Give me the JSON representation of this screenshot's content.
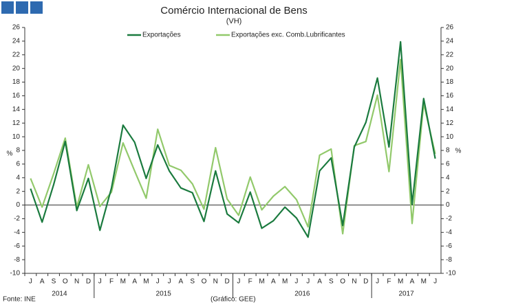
{
  "chart_data": {
    "type": "line",
    "title": "Comércio Internacional de Bens",
    "subtitle": "(VH)",
    "y_label": "%",
    "y2_label": "%",
    "source": "Fonte: INE",
    "credit": "(Gráfico: GEE)",
    "categories": [
      "J",
      "A",
      "S",
      "O",
      "N",
      "D",
      "J",
      "F",
      "M",
      "A",
      "M",
      "J",
      "J",
      "A",
      "S",
      "O",
      "N",
      "D",
      "J",
      "F",
      "M",
      "A",
      "M",
      "J",
      "J",
      "A",
      "S",
      "O",
      "N",
      "D",
      "J",
      "F",
      "M",
      "A",
      "M",
      "J"
    ],
    "year_groups": [
      {
        "label": "2014",
        "count": 6
      },
      {
        "label": "2015",
        "count": 12
      },
      {
        "label": "2016",
        "count": 12
      },
      {
        "label": "2017",
        "count": 6
      }
    ],
    "series": [
      {
        "name": "Exportações",
        "color": "#1a7a3e",
        "values": [
          2.4,
          -2.5,
          3,
          9.3,
          -0.8,
          3.9,
          -3.7,
          2.5,
          11.7,
          9.2,
          3.9,
          8.8,
          5,
          2.5,
          1.8,
          -2.4,
          5,
          -1.3,
          -2.6,
          1.9,
          -3.4,
          -2.3,
          -0.3,
          -1.9,
          -4.7,
          5,
          6.9,
          -3,
          8.5,
          12.1,
          18.6,
          8.5,
          23.9,
          0.1,
          15.6,
          6.8
        ]
      },
      {
        "name": "Exportações exc. Comb.Lubrificantes",
        "color": "#92c96b",
        "values": [
          3.9,
          -0.3,
          4.6,
          9.8,
          -0.3,
          5.9,
          -0.2,
          1.9,
          9.1,
          5,
          1,
          11.1,
          5.8,
          5.1,
          3.1,
          -0.6,
          8.4,
          0.9,
          -1.5,
          4.1,
          -0.7,
          1.3,
          2.7,
          0.8,
          -3.2,
          7.3,
          8.2,
          -4.2,
          8.7,
          9.3,
          16.1,
          4.9,
          21.3,
          -2.7,
          14.9,
          7.5
        ]
      }
    ],
    "ylim": [
      -10,
      26
    ],
    "yticks": [
      -10,
      -8,
      -6,
      -4,
      -2,
      0,
      2,
      4,
      6,
      8,
      10,
      12,
      14,
      16,
      18,
      20,
      22,
      24,
      26
    ],
    "y2lim": [
      -10,
      26
    ],
    "y2ticks": [
      -10,
      -8,
      -6,
      -4,
      -2,
      0,
      2,
      4,
      6,
      8,
      10,
      12,
      14,
      16,
      18,
      20,
      22,
      24,
      26
    ]
  }
}
